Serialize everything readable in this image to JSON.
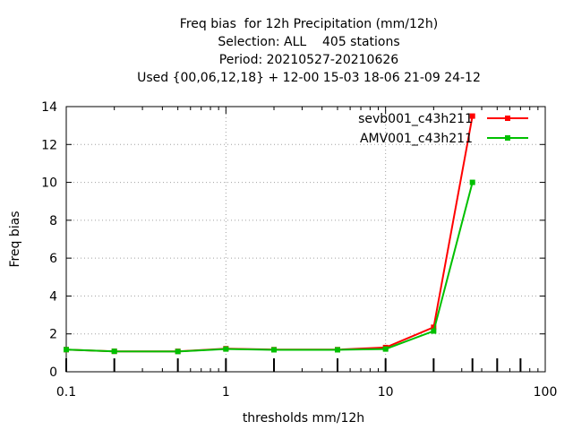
{
  "chart_data": {
    "type": "line",
    "title": "Freq bias  for 12h Precipitation (mm/12h)",
    "subtitle_lines": [
      "Selection: ALL    405 stations",
      "Period: 20210527-20210626",
      "Used {00,06,12,18} + 12-00 15-03 18-06 21-09 24-12"
    ],
    "xlabel": "thresholds mm/12h",
    "ylabel": "Freq bias",
    "x_scale": "log",
    "xlim": [
      0.1,
      100
    ],
    "ylim": [
      0,
      14
    ],
    "x_ticks": [
      0.1,
      1,
      10,
      100
    ],
    "x_tick_labels": [
      "0.1",
      "1",
      "10",
      "100"
    ],
    "y_ticks": [
      0,
      2,
      4,
      6,
      8,
      10,
      12,
      14
    ],
    "y_tick_labels": [
      "0",
      "2",
      "4",
      "6",
      "8",
      "10",
      "12",
      "14"
    ],
    "grid": true,
    "legend_position": "top-right",
    "threshold_marks": [
      0.1,
      0.2,
      0.5,
      1,
      2,
      5,
      10,
      20,
      35,
      50,
      70
    ],
    "x": [
      0.1,
      0.2,
      0.5,
      1,
      2,
      5,
      10,
      20,
      35
    ],
    "series": [
      {
        "name": "sevb001_c43h211",
        "color": "#ff0000",
        "values": [
          1.17,
          1.08,
          1.08,
          1.22,
          1.17,
          1.17,
          1.28,
          2.35,
          13.5
        ]
      },
      {
        "name": "AMV001_c43h211",
        "color": "#00c000",
        "values": [
          1.17,
          1.08,
          1.07,
          1.2,
          1.16,
          1.16,
          1.2,
          2.15,
          10.0
        ]
      }
    ]
  }
}
